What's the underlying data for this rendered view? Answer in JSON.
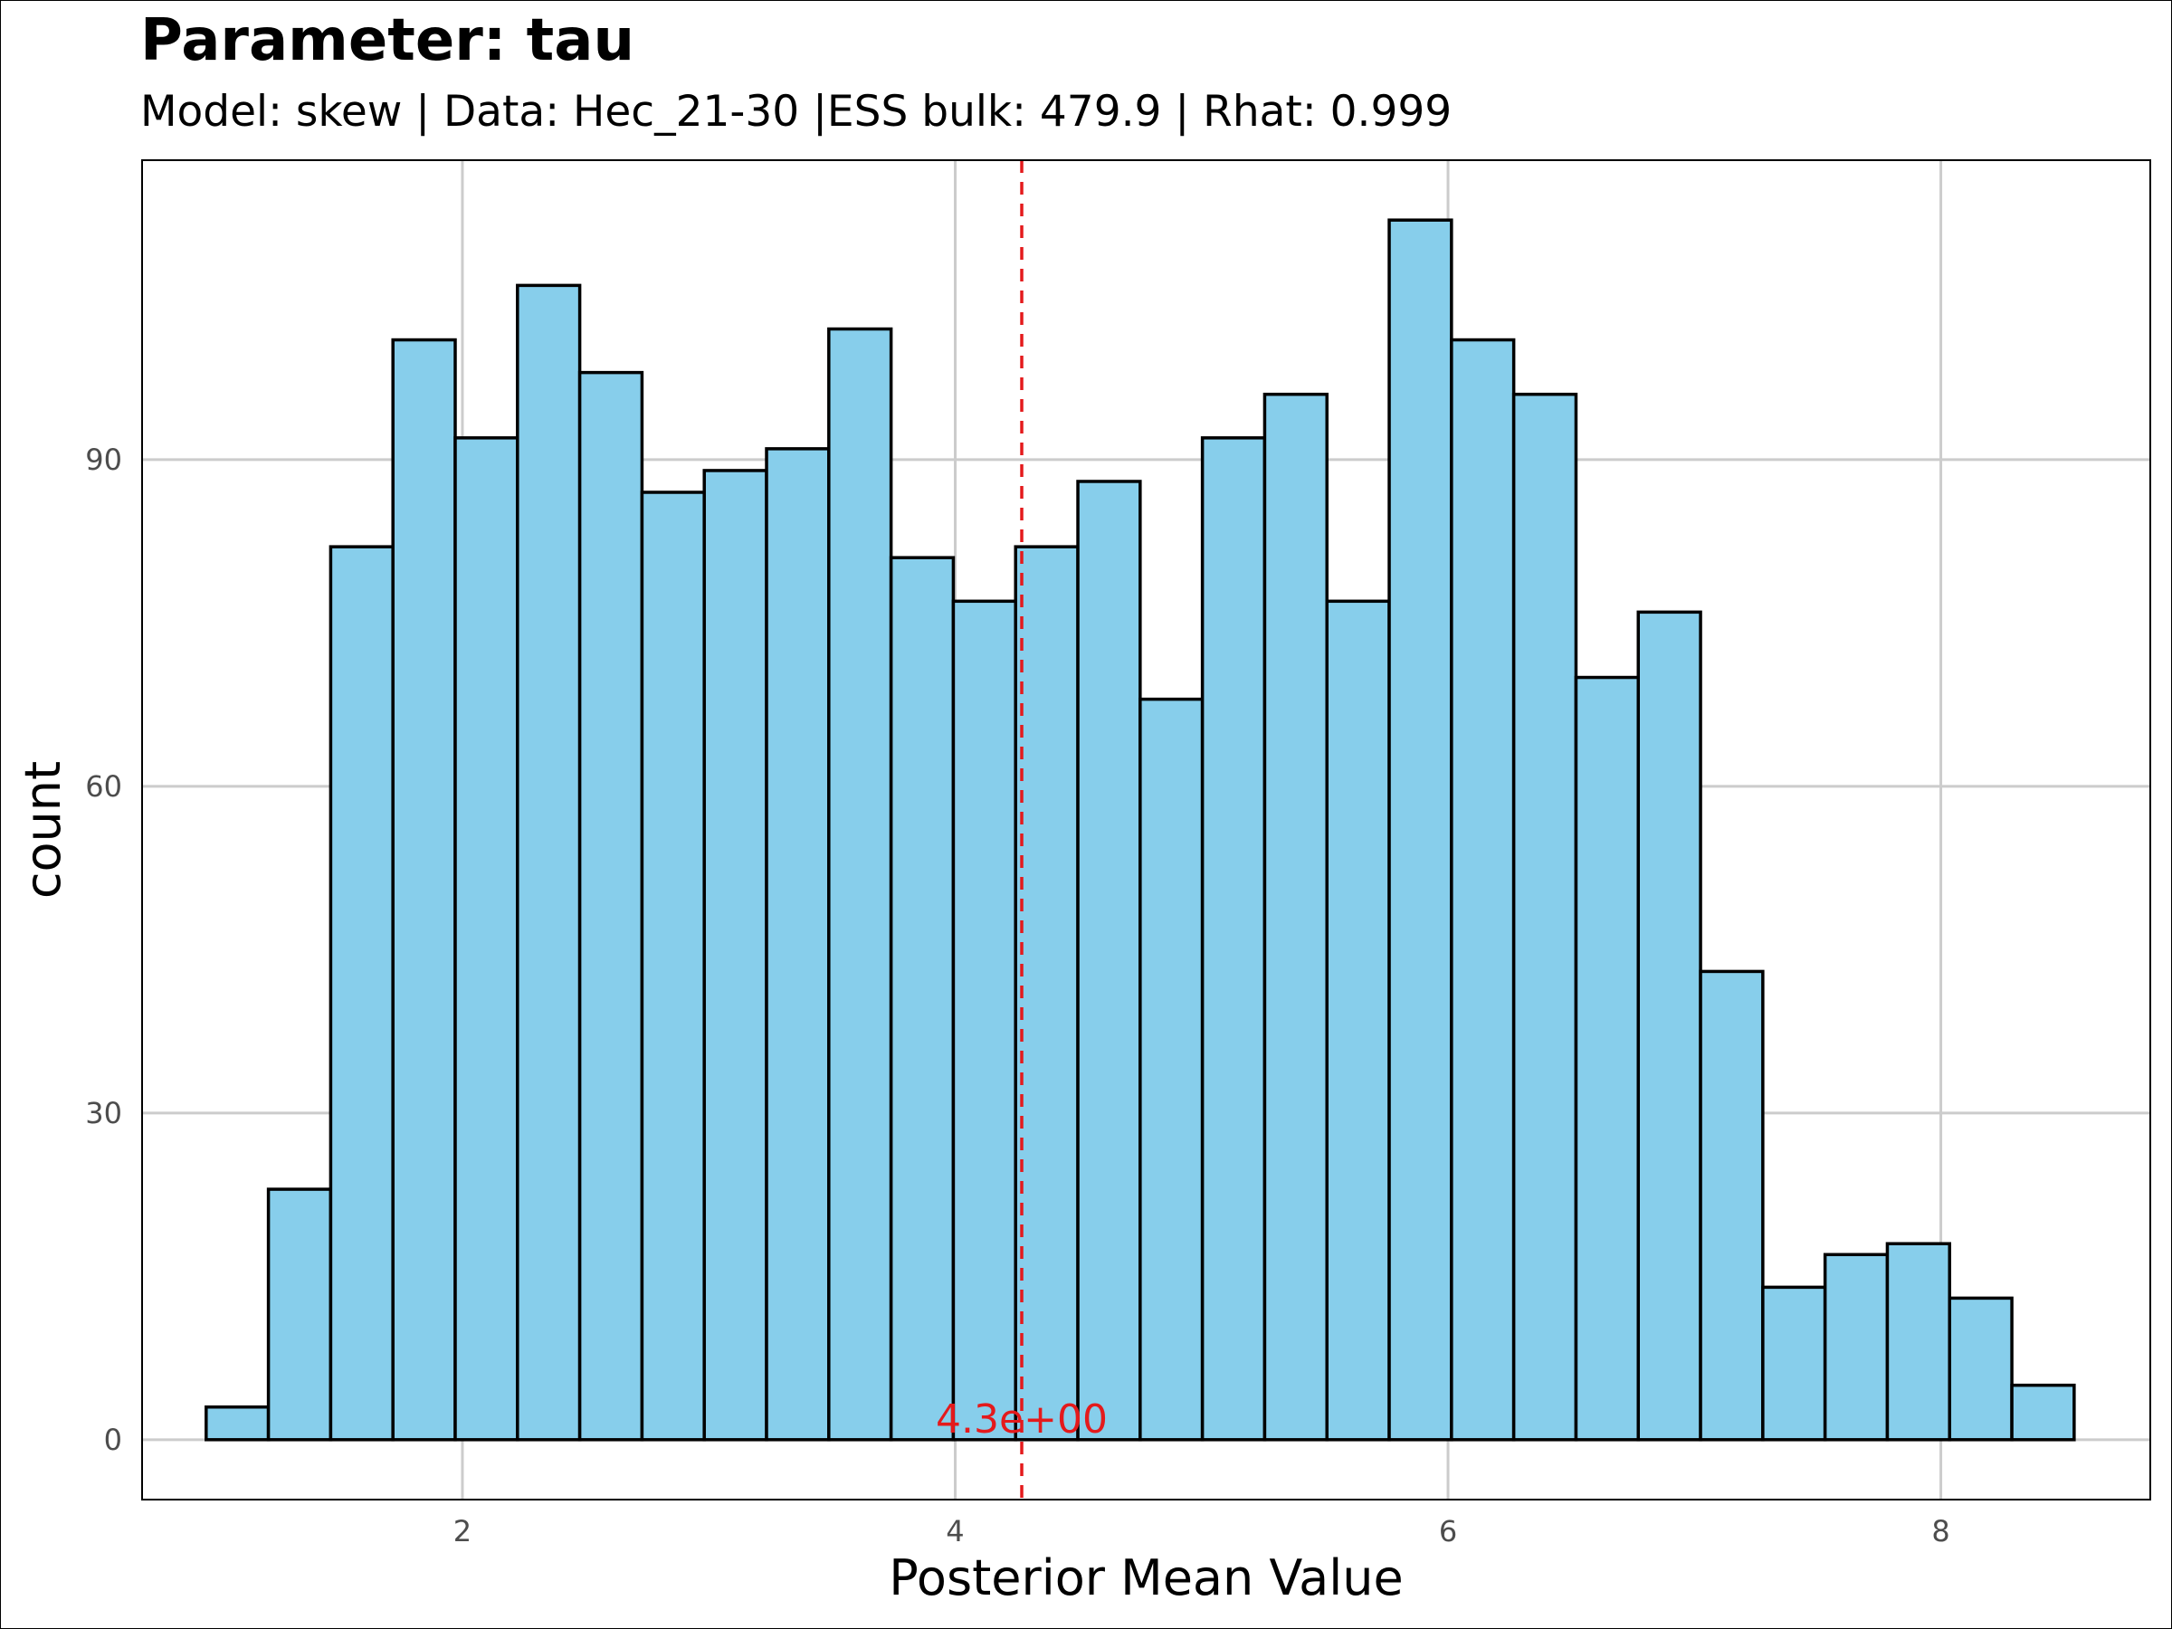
{
  "chart_data": {
    "type": "bar",
    "subtype": "histogram",
    "title": "Parameter: tau",
    "subtitle": "Model: skew | Data: Hec_21-30 |ESS bulk: 479.9 | Rhat: 0.999",
    "xlabel": "Posterior Mean Value",
    "ylabel": "count",
    "xlim": [
      0.7,
      8.85
    ],
    "ylim": [
      -5.5,
      117.5
    ],
    "xticks": [
      2,
      4,
      6,
      8
    ],
    "xtick_labels": [
      "2",
      "4",
      "6",
      "8"
    ],
    "yticks": [
      0,
      30,
      60,
      90
    ],
    "ytick_labels": [
      "0",
      "30",
      "60",
      "90"
    ],
    "bin_start": 0.96,
    "bin_width": 0.2527,
    "counts": [
      3,
      23,
      82,
      101,
      92,
      106,
      98,
      87,
      89,
      91,
      102,
      81,
      77,
      82,
      88,
      68,
      92,
      96,
      77,
      112,
      101,
      96,
      70,
      76,
      43,
      14,
      17,
      18,
      13,
      5
    ],
    "bar_fill": "#87CEEB",
    "bar_stroke": "#000000",
    "grid": true,
    "grid_color": "#cccccc",
    "reference_line": {
      "x": 4.27,
      "label": "4.3e+00",
      "color": "#e41a1c",
      "style": "dashed"
    }
  }
}
